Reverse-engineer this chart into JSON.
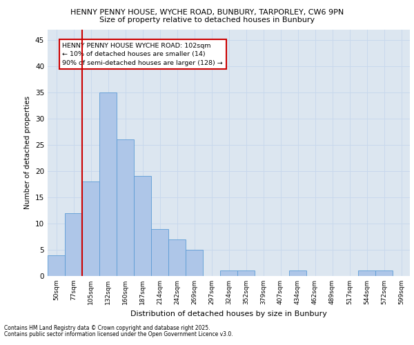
{
  "title1": "HENNY PENNY HOUSE, WYCHE ROAD, BUNBURY, TARPORLEY, CW6 9PN",
  "title2": "Size of property relative to detached houses in Bunbury",
  "xlabel": "Distribution of detached houses by size in Bunbury",
  "ylabel": "Number of detached properties",
  "categories": [
    "50sqm",
    "77sqm",
    "105sqm",
    "132sqm",
    "160sqm",
    "187sqm",
    "214sqm",
    "242sqm",
    "269sqm",
    "297sqm",
    "324sqm",
    "352sqm",
    "379sqm",
    "407sqm",
    "434sqm",
    "462sqm",
    "489sqm",
    "517sqm",
    "544sqm",
    "572sqm",
    "599sqm"
  ],
  "values": [
    4,
    12,
    18,
    35,
    26,
    19,
    9,
    7,
    5,
    0,
    1,
    1,
    0,
    0,
    1,
    0,
    0,
    0,
    1,
    1,
    0
  ],
  "bar_color": "#aec6e8",
  "bar_edge_color": "#5b9bd5",
  "grid_color": "#c8d8ec",
  "background_color": "#dce6f0",
  "annotation_text": "HENNY PENNY HOUSE WYCHE ROAD: 102sqm\n← 10% of detached houses are smaller (14)\n90% of semi-detached houses are larger (128) →",
  "annotation_box_color": "#ffffff",
  "annotation_box_edge": "#cc0000",
  "ylim": [
    0,
    47
  ],
  "yticks": [
    0,
    5,
    10,
    15,
    20,
    25,
    30,
    35,
    40,
    45
  ],
  "footer1": "Contains HM Land Registry data © Crown copyright and database right 2025.",
  "footer2": "Contains public sector information licensed under the Open Government Licence v3.0."
}
